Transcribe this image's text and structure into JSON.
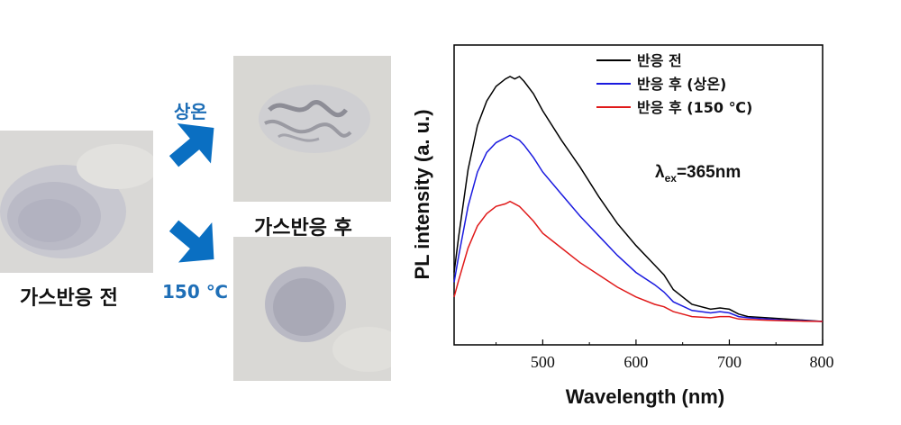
{
  "photos": {
    "before_label": "가스반응 전",
    "after_label": "가스반응 후",
    "arrow_top_label": "상온",
    "arrow_bottom_label": "150 ℃"
  },
  "colors": {
    "arrow": "#0a6fc2",
    "label_blue": "#1f6fb7",
    "series_before": "#000000",
    "series_room": "#1a1adf",
    "series_150": "#e01a1a"
  },
  "chart_data": {
    "type": "line",
    "xlabel": "Wavelength (nm)",
    "ylabel": "PL intensity (a. u.)",
    "xlim": [
      405,
      800
    ],
    "x_ticks": [
      500,
      600,
      700,
      800
    ],
    "ylim": [
      0,
      1
    ],
    "y_ticks_shown": false,
    "legend_position": "top-right",
    "annotation": {
      "prefix": "λ",
      "subscript": "ex",
      "suffix": "=365nm"
    },
    "x": [
      405,
      410,
      420,
      430,
      440,
      450,
      460,
      465,
      470,
      475,
      480,
      490,
      500,
      520,
      540,
      560,
      580,
      600,
      620,
      630,
      640,
      660,
      680,
      690,
      700,
      710,
      720,
      740,
      760,
      780,
      800
    ],
    "series": [
      {
        "name": "반응 전",
        "color_key": "series_before",
        "values": [
          0.2,
          0.35,
          0.62,
          0.8,
          0.9,
          0.96,
          0.99,
          1.0,
          0.99,
          1.0,
          0.98,
          0.93,
          0.86,
          0.74,
          0.63,
          0.51,
          0.4,
          0.31,
          0.23,
          0.19,
          0.13,
          0.07,
          0.05,
          0.055,
          0.05,
          0.03,
          0.02,
          0.015,
          0.01,
          0.005,
          0.0
        ]
      },
      {
        "name": "반응 후 (상온)",
        "color_key": "series_room",
        "values": [
          0.16,
          0.27,
          0.47,
          0.61,
          0.69,
          0.73,
          0.75,
          0.76,
          0.75,
          0.74,
          0.72,
          0.67,
          0.61,
          0.52,
          0.43,
          0.35,
          0.27,
          0.2,
          0.15,
          0.12,
          0.08,
          0.045,
          0.035,
          0.04,
          0.035,
          0.02,
          0.015,
          0.01,
          0.005,
          0.003,
          0.0
        ]
      },
      {
        "name": "반응 후 (150 ℃)",
        "color_key": "series_150",
        "values": [
          0.1,
          0.17,
          0.3,
          0.39,
          0.44,
          0.47,
          0.48,
          0.49,
          0.48,
          0.47,
          0.45,
          0.41,
          0.36,
          0.3,
          0.24,
          0.19,
          0.14,
          0.1,
          0.07,
          0.06,
          0.04,
          0.02,
          0.015,
          0.02,
          0.02,
          0.01,
          0.008,
          0.005,
          0.003,
          0.001,
          0.0
        ]
      }
    ]
  }
}
